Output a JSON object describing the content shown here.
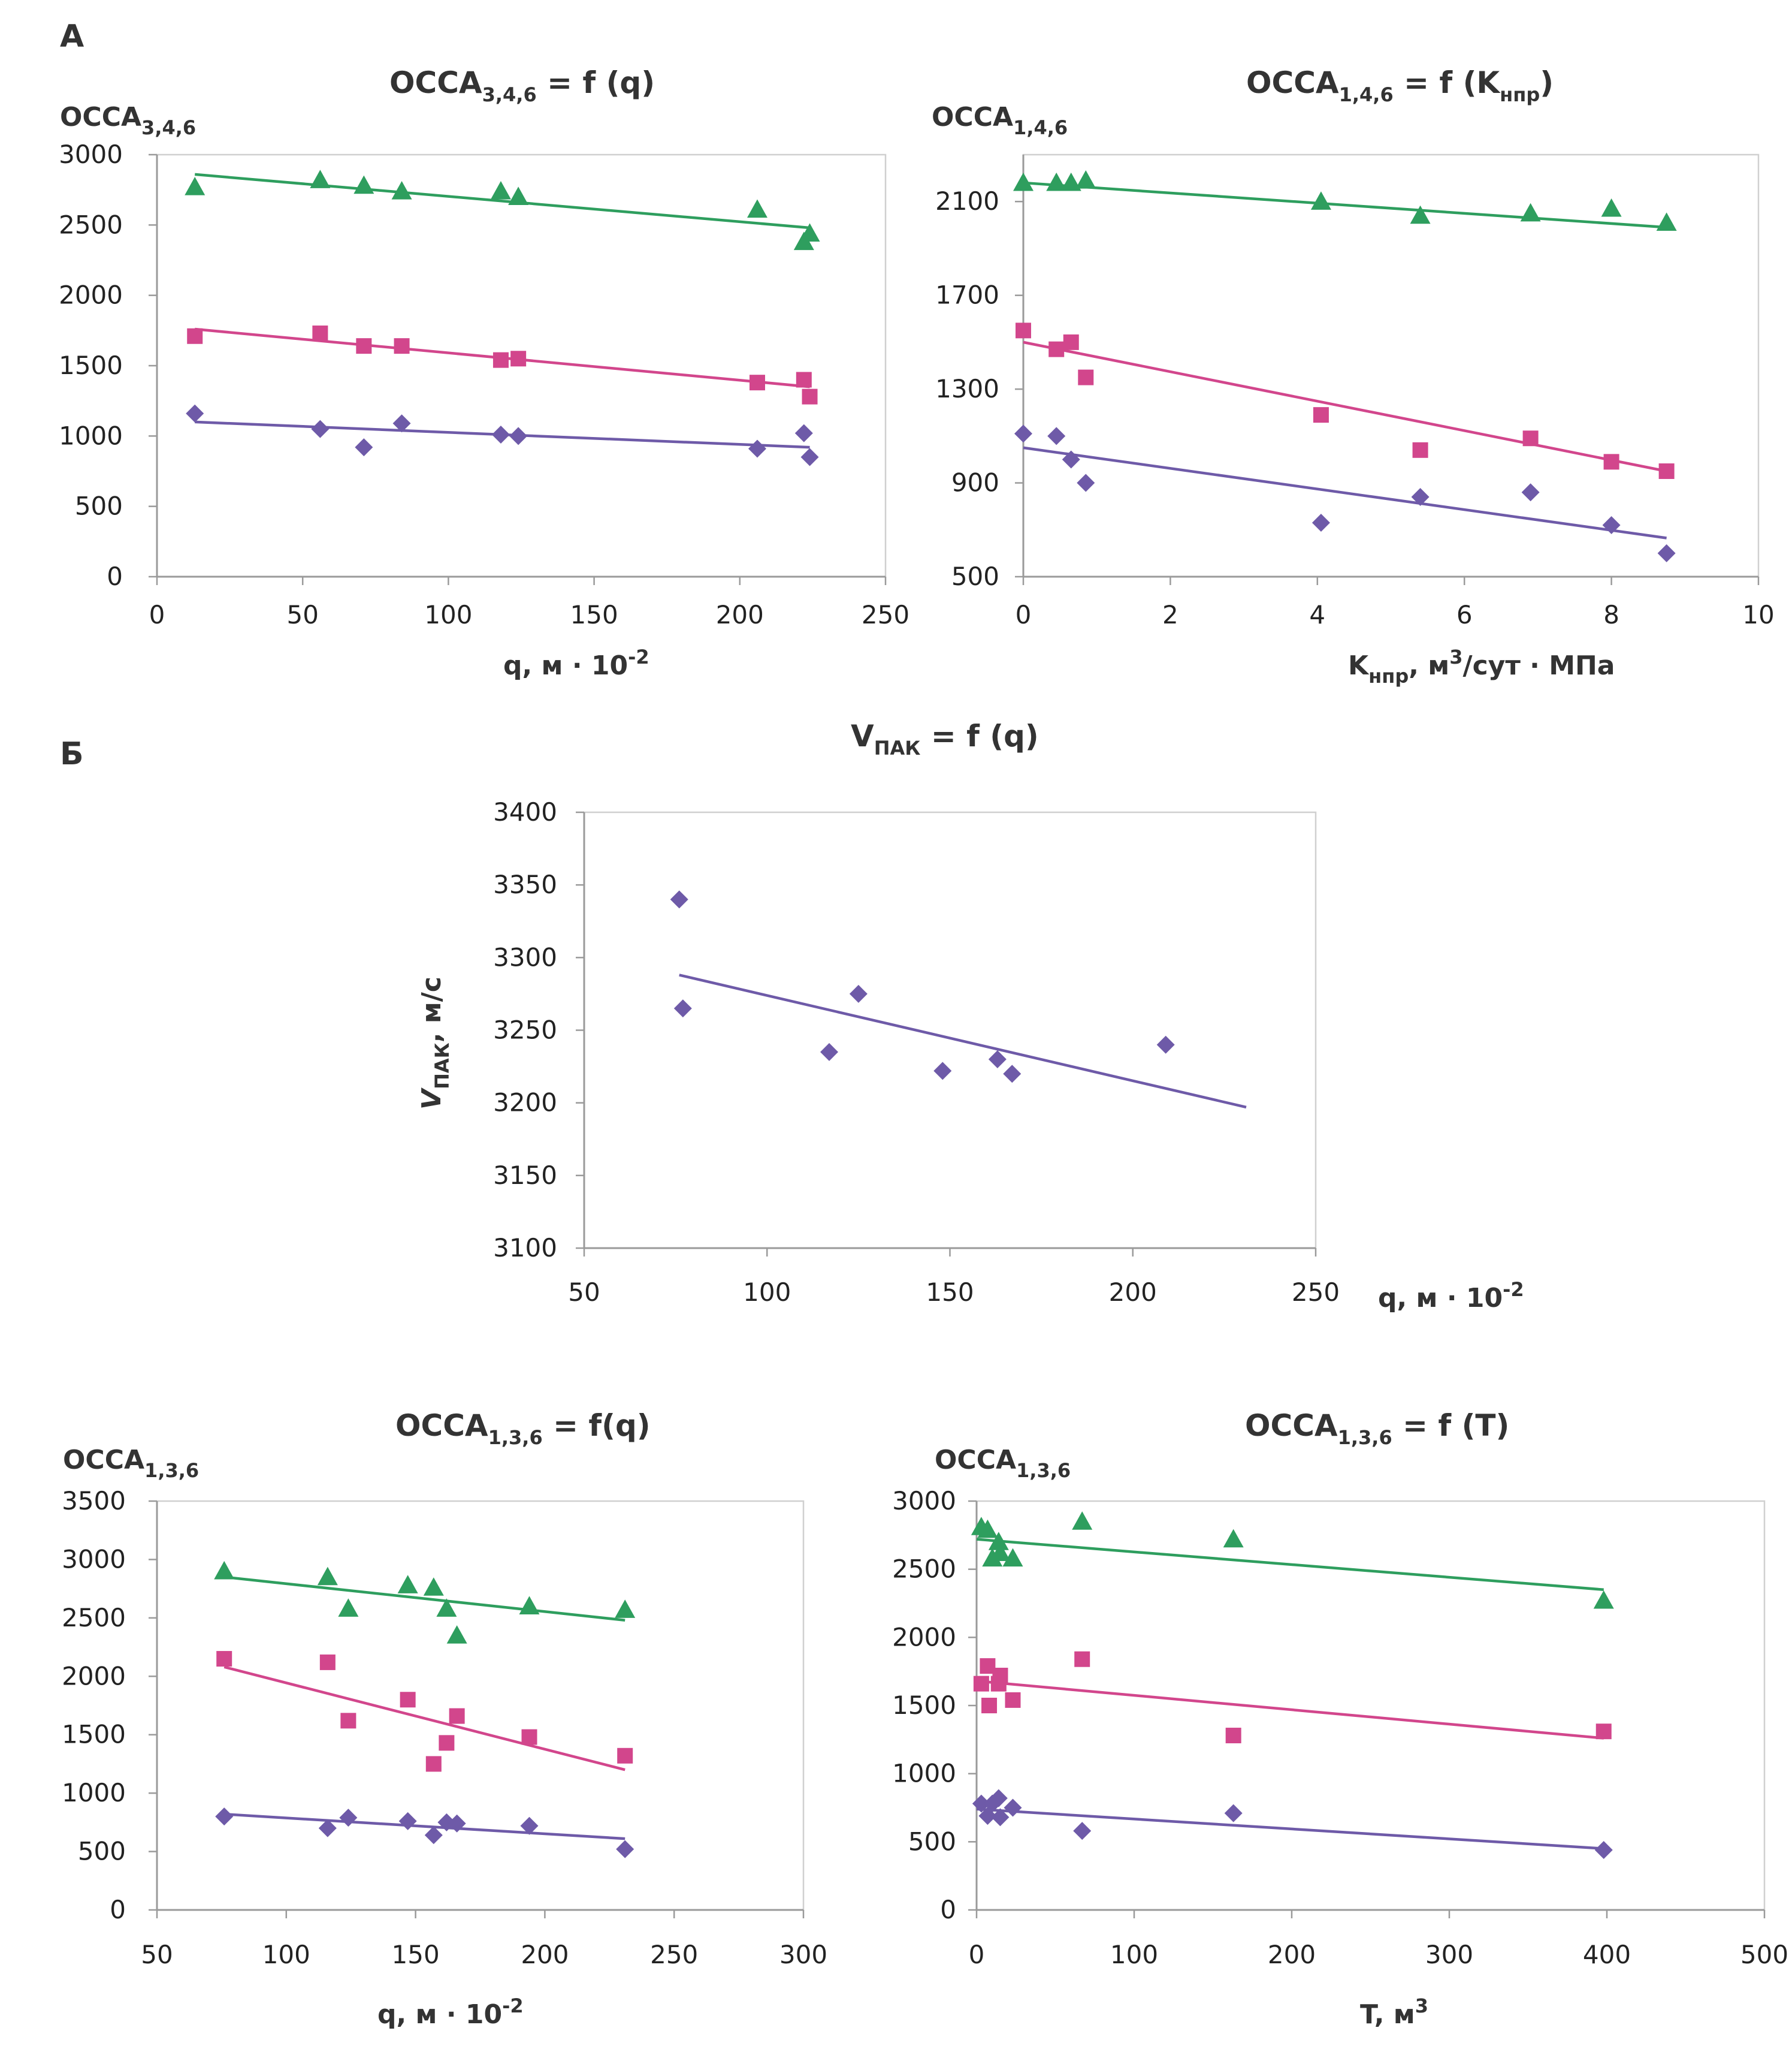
{
  "section_labels": {
    "a": "А",
    "b": "Б"
  },
  "colors": {
    "blue": "#6e5aa8",
    "pink": "#d2468c",
    "green": "#2e9e5e",
    "frame": "#d0d0d0",
    "axis": "#9a9a9a"
  },
  "chart_data": [
    {
      "id": "chart1",
      "type": "scatter",
      "title": {
        "main": "OCCA",
        "sub": "3,4,6",
        "rest": " = f (q)"
      },
      "ylabel": {
        "main": "OCCA",
        "sub": "3,4,6"
      },
      "xlabel": {
        "main": "q, м · 10",
        "sup": "-2"
      },
      "xlim": [
        0,
        250
      ],
      "ylim": [
        0,
        3000
      ],
      "xticks": [
        0,
        50,
        100,
        150,
        200,
        250
      ],
      "yticks": [
        0,
        500,
        1000,
        1500,
        2000,
        2500,
        3000
      ],
      "series": [
        {
          "color": "blue",
          "marker": "diamond",
          "points": [
            [
              13,
              1160
            ],
            [
              56,
              1050
            ],
            [
              71,
              920
            ],
            [
              84,
              1090
            ],
            [
              118,
              1010
            ],
            [
              124,
              1000
            ],
            [
              206,
              910
            ],
            [
              222,
              1020
            ],
            [
              224,
              850
            ]
          ],
          "trend": [
            [
              13,
              1100
            ],
            [
              224,
              920
            ]
          ]
        },
        {
          "color": "pink",
          "marker": "square",
          "points": [
            [
              13,
              1710
            ],
            [
              56,
              1730
            ],
            [
              71,
              1640
            ],
            [
              84,
              1640
            ],
            [
              118,
              1540
            ],
            [
              124,
              1550
            ],
            [
              206,
              1380
            ],
            [
              222,
              1400
            ],
            [
              224,
              1280
            ]
          ],
          "trend": [
            [
              13,
              1760
            ],
            [
              224,
              1350
            ]
          ]
        },
        {
          "color": "green",
          "marker": "triangle",
          "points": [
            [
              13,
              2770
            ],
            [
              56,
              2820
            ],
            [
              71,
              2780
            ],
            [
              84,
              2740
            ],
            [
              118,
              2740
            ],
            [
              124,
              2700
            ],
            [
              206,
              2610
            ],
            [
              222,
              2380
            ],
            [
              224,
              2440
            ]
          ],
          "trend": [
            [
              13,
              2860
            ],
            [
              224,
              2480
            ]
          ]
        }
      ]
    },
    {
      "id": "chart2",
      "type": "scatter",
      "title": {
        "main": "OCCA",
        "sub": "1,4,6",
        "rest": " = f (K",
        "sub2": "нпр",
        "end": ")"
      },
      "ylabel": {
        "main": "OCCA",
        "sub": "1,4,6"
      },
      "xlabel": {
        "main": "K",
        "sub": "нпр",
        "mid": ", м",
        "sup": "3",
        "end": "/сут · МПа"
      },
      "xlim": [
        0,
        10
      ],
      "ylim": [
        500,
        2300
      ],
      "xticks": [
        0,
        2,
        4,
        6,
        8,
        10
      ],
      "yticks": [
        500,
        900,
        1300,
        1700,
        2100
      ],
      "series": [
        {
          "color": "blue",
          "marker": "diamond",
          "points": [
            [
              0,
              1110
            ],
            [
              0.45,
              1100
            ],
            [
              0.65,
              1000
            ],
            [
              0.85,
              900
            ],
            [
              4.05,
              730
            ],
            [
              5.4,
              840
            ],
            [
              6.9,
              860
            ],
            [
              8,
              720
            ],
            [
              8.75,
              600
            ]
          ],
          "trend": [
            [
              0,
              1050
            ],
            [
              8.75,
              665
            ]
          ]
        },
        {
          "color": "pink",
          "marker": "square",
          "points": [
            [
              0,
              1550
            ],
            [
              0.45,
              1470
            ],
            [
              0.65,
              1500
            ],
            [
              0.85,
              1350
            ],
            [
              4.05,
              1190
            ],
            [
              5.4,
              1040
            ],
            [
              6.9,
              1090
            ],
            [
              8,
              990
            ],
            [
              8.75,
              950
            ]
          ],
          "trend": [
            [
              0,
              1500
            ],
            [
              8.75,
              950
            ]
          ]
        },
        {
          "color": "green",
          "marker": "triangle",
          "points": [
            [
              0,
              2180
            ],
            [
              0.45,
              2180
            ],
            [
              0.65,
              2180
            ],
            [
              0.85,
              2190
            ],
            [
              4.05,
              2100
            ],
            [
              5.4,
              2040
            ],
            [
              6.9,
              2050
            ],
            [
              8,
              2070
            ],
            [
              8.75,
              2010
            ]
          ],
          "trend": [
            [
              0,
              2180
            ],
            [
              8.75,
              1990
            ]
          ]
        }
      ]
    },
    {
      "id": "chart3",
      "type": "scatter",
      "title": {
        "main": "V",
        "sub": "ПАК",
        "rest": " = f (q)"
      },
      "ylabel": {
        "main": "V",
        "sub": "ПАК",
        "rest": ", м/с"
      },
      "xlabel": {
        "main": "q, м · 10",
        "sup": "-2"
      },
      "xlim": [
        50,
        250
      ],
      "ylim": [
        3100,
        3400
      ],
      "xticks": [
        50,
        100,
        150,
        200,
        250
      ],
      "yticks": [
        3100,
        3150,
        3200,
        3250,
        3300,
        3350,
        3400
      ],
      "series": [
        {
          "color": "blue",
          "marker": "diamond",
          "points": [
            [
              76,
              3340
            ],
            [
              77,
              3265
            ],
            [
              117,
              3235
            ],
            [
              125,
              3275
            ],
            [
              148,
              3222
            ],
            [
              163,
              3230
            ],
            [
              167,
              3220
            ],
            [
              209,
              3240
            ]
          ],
          "trend": [
            [
              76,
              3288
            ],
            [
              231,
              3197
            ]
          ]
        }
      ]
    },
    {
      "id": "chart4",
      "type": "scatter",
      "title": {
        "main": "OCCA",
        "sub": "1,3,6",
        "rest": " = f(q)"
      },
      "ylabel": {
        "main": "OCCA",
        "sub": "1,3,6"
      },
      "xlabel": {
        "main": "q, м · 10",
        "sup": "-2"
      },
      "xlim": [
        50,
        300
      ],
      "ylim": [
        0,
        3500
      ],
      "xticks": [
        50,
        100,
        150,
        200,
        250,
        300
      ],
      "yticks": [
        0,
        500,
        1000,
        1500,
        2000,
        2500,
        3000,
        3500
      ],
      "series": [
        {
          "color": "blue",
          "marker": "diamond",
          "points": [
            [
              76,
              800
            ],
            [
              116,
              700
            ],
            [
              124,
              790
            ],
            [
              147,
              760
            ],
            [
              157,
              640
            ],
            [
              162,
              750
            ],
            [
              166,
              740
            ],
            [
              194,
              720
            ],
            [
              231,
              520
            ]
          ],
          "trend": [
            [
              76,
              820
            ],
            [
              231,
              610
            ]
          ]
        },
        {
          "color": "pink",
          "marker": "square",
          "points": [
            [
              76,
              2150
            ],
            [
              116,
              2120
            ],
            [
              124,
              1620
            ],
            [
              147,
              1800
            ],
            [
              157,
              1250
            ],
            [
              162,
              1430
            ],
            [
              166,
              1660
            ],
            [
              194,
              1480
            ],
            [
              231,
              1320
            ]
          ],
          "trend": [
            [
              76,
              2080
            ],
            [
              231,
              1200
            ]
          ]
        },
        {
          "color": "green",
          "marker": "triangle",
          "points": [
            [
              76,
              2900
            ],
            [
              116,
              2850
            ],
            [
              124,
              2580
            ],
            [
              147,
              2780
            ],
            [
              157,
              2760
            ],
            [
              162,
              2580
            ],
            [
              166,
              2350
            ],
            [
              194,
              2600
            ],
            [
              231,
              2570
            ]
          ],
          "trend": [
            [
              76,
              2850
            ],
            [
              231,
              2480
            ]
          ]
        }
      ]
    },
    {
      "id": "chart5",
      "type": "scatter",
      "title": {
        "main": "OCCA",
        "sub": "1,3,6",
        "rest": " = f (T)"
      },
      "ylabel": {
        "main": "OCCA",
        "sub": "1,3,6"
      },
      "xlabel": {
        "main": "T, м",
        "sup": "3"
      },
      "xlim": [
        0,
        500
      ],
      "ylim": [
        0,
        3000
      ],
      "xticks": [
        0,
        100,
        200,
        300,
        400,
        500
      ],
      "yticks": [
        0,
        500,
        1000,
        1500,
        2000,
        2500,
        3000
      ],
      "series": [
        {
          "color": "blue",
          "marker": "diamond",
          "points": [
            [
              3,
              780
            ],
            [
              7,
              690
            ],
            [
              10,
              780
            ],
            [
              14,
              820
            ],
            [
              15,
              680
            ],
            [
              23,
              750
            ],
            [
              67,
              580
            ],
            [
              163,
              710
            ],
            [
              398,
              440
            ]
          ],
          "trend": [
            [
              0,
              740
            ],
            [
              398,
              450
            ]
          ]
        },
        {
          "color": "pink",
          "marker": "square",
          "points": [
            [
              3,
              1660
            ],
            [
              7,
              1790
            ],
            [
              8,
              1500
            ],
            [
              14,
              1660
            ],
            [
              15,
              1720
            ],
            [
              23,
              1540
            ],
            [
              67,
              1840
            ],
            [
              163,
              1280
            ],
            [
              398,
              1310
            ]
          ],
          "trend": [
            [
              0,
              1680
            ],
            [
              398,
              1260
            ]
          ]
        },
        {
          "color": "green",
          "marker": "triangle",
          "points": [
            [
              3,
              2810
            ],
            [
              7,
              2790
            ],
            [
              10,
              2580
            ],
            [
              14,
              2700
            ],
            [
              15,
              2620
            ],
            [
              23,
              2580
            ],
            [
              67,
              2850
            ],
            [
              163,
              2720
            ],
            [
              398,
              2270
            ]
          ],
          "trend": [
            [
              0,
              2720
            ],
            [
              398,
              2350
            ]
          ]
        }
      ]
    }
  ]
}
